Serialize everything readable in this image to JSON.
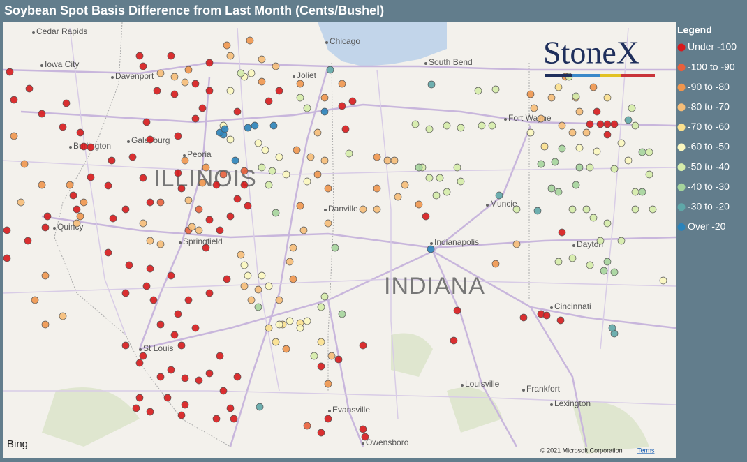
{
  "title": "Soybean Spot Basis Difference from Last Month (Cents/Bushel)",
  "legend": {
    "title": "Legend",
    "items": [
      {
        "label": "Under -100",
        "color": "#d7191c"
      },
      {
        "label": "-100 to -90",
        "color": "#e8603c"
      },
      {
        "label": "-90 to -80",
        "color": "#f0964e"
      },
      {
        "label": "-80 to -70",
        "color": "#f6bd78"
      },
      {
        "label": "-70 to -60",
        "color": "#fbe08e"
      },
      {
        "label": "-60 to -50",
        "color": "#fbf7bf"
      },
      {
        "label": "-50 to -40",
        "color": "#d5ecaa"
      },
      {
        "label": "-40 to -30",
        "color": "#a5d49c"
      },
      {
        "label": "-30 to -20",
        "color": "#5fa7a8"
      },
      {
        "label": "Over -20",
        "color": "#2b83ba"
      }
    ]
  },
  "map": {
    "state_labels": [
      "ILLINOIS",
      "INDIANA"
    ],
    "city_labels": [
      "Cedar Rapids",
      "Iowa City",
      "Davenport",
      "Chicago",
      "Joliet",
      "South Bend",
      "Fort Wayne",
      "Galesburg",
      "Peoria",
      "Burlington",
      "Quincy",
      "Danville",
      "Muncie",
      "Springfield",
      "Indianapolis",
      "Dayton",
      "Cincinnati",
      "St Louis",
      "Louisville",
      "Frankfort",
      "Lexington",
      "Evansville",
      "Owensboro"
    ],
    "provider": "Bing",
    "copyright": "© 2021 Microsoft Corporation",
    "terms": "Terms"
  },
  "logo": "StoneX"
}
